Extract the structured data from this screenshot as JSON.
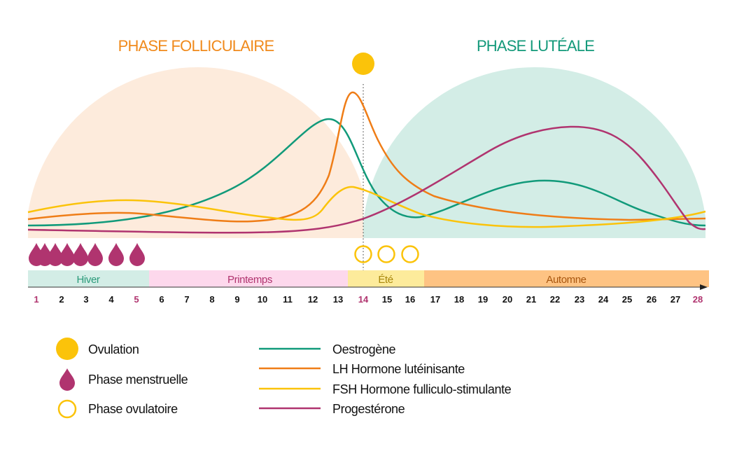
{
  "titles": {
    "follicular": "PHASE FOLLICULAIRE",
    "luteal": "PHASE LUTÉALE"
  },
  "seasons": [
    "Hiver",
    "Printemps",
    "Été",
    "Automne"
  ],
  "days": [
    "1",
    "2",
    "3",
    "4",
    "5",
    "6",
    "7",
    "8",
    "9",
    "10",
    "11",
    "12",
    "13",
    "14",
    "15",
    "16",
    "17",
    "18",
    "19",
    "20",
    "21",
    "22",
    "23",
    "24",
    "25",
    "26",
    "27",
    "28"
  ],
  "highlight_days": [
    "1",
    "5",
    "14",
    "28"
  ],
  "legend": {
    "symbols": [
      {
        "icon": "sun-disc",
        "label": "Ovulation"
      },
      {
        "icon": "drop",
        "label": "Phase menstruelle"
      },
      {
        "icon": "ring",
        "label": "Phase ovulatoire"
      }
    ],
    "lines": [
      {
        "label": "Oestrogène",
        "color": "#119a7a"
      },
      {
        "label": "LH Hormone lutéinisante",
        "color": "#ef7d17"
      },
      {
        "label": "FSH Hormone fulliculo-stimulante",
        "color": "#fbc30a"
      },
      {
        "label": "Progestérone",
        "color": "#b0346f"
      }
    ]
  },
  "colors": {
    "follicular": "#f08a1c",
    "luteal": "#13997a",
    "follicular_bg": "#fdebdc",
    "luteal_bg": "#d3ede6",
    "menstrual": "#b0346f",
    "ovulation": "#fbc30a",
    "hiver": "#d3ede6",
    "printemps": "#fdd8ec",
    "ete": "#fdeb9b",
    "automne": "#fec383"
  }
}
